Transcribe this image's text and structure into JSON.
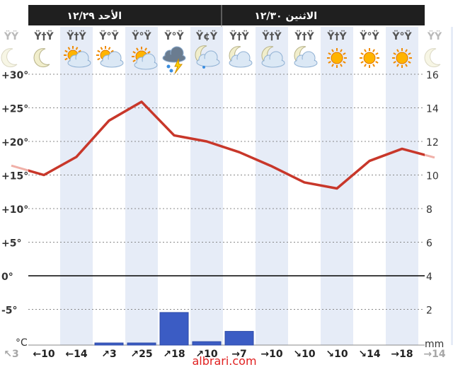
{
  "days": [
    {
      "label": "الأحد ١٢/٢٩"
    },
    {
      "label": "الاثنين ١٢/٣٠"
    }
  ],
  "hours": [
    "ŸŸ",
    "Ÿ†Ÿ",
    "Ÿ†Ÿ",
    "Ÿ°Ÿ",
    "Ÿ°Ÿ",
    "Ÿ°Ÿ",
    "Ÿ¢Ÿ",
    "Ÿ†Ÿ",
    "Ÿ†Ÿ",
    "Ÿ†Ÿ",
    "Ÿ†Ÿ",
    "Ÿ°Ÿ",
    "Ÿ°Ÿ",
    "ŸŸ"
  ],
  "icons": [
    "moon-icon",
    "moon-icon",
    "partly-cloudy-day-icon",
    "partly-cloudy-day-icon",
    "sun-cloud-icon",
    "thunderstorm-icon",
    "moon-cloud-rain-icon",
    "moon-cloud-icon",
    "moon-cloud-icon",
    "moon-cloud-icon",
    "sun-icon",
    "sun-icon",
    "sun-icon",
    "moon-icon"
  ],
  "wind": [
    {
      "arrow": "↖",
      "speed": "3"
    },
    {
      "arrow": "←",
      "speed": "10"
    },
    {
      "arrow": "←",
      "speed": "14"
    },
    {
      "arrow": "↗",
      "speed": "3"
    },
    {
      "arrow": "↗",
      "speed": "25"
    },
    {
      "arrow": "↗",
      "speed": "18"
    },
    {
      "arrow": "↗",
      "speed": "10"
    },
    {
      "arrow": "→",
      "speed": "7"
    },
    {
      "arrow": "→",
      "speed": "10"
    },
    {
      "arrow": "↘",
      "speed": "10"
    },
    {
      "arrow": "↘",
      "speed": "10"
    },
    {
      "arrow": "↘",
      "speed": "14"
    },
    {
      "arrow": "→",
      "speed": "18"
    },
    {
      "arrow": "→",
      "speed": "14"
    }
  ],
  "units": {
    "temp": "°C",
    "precip": "mm"
  },
  "watermark": "albrari.com",
  "colors": {
    "header": "#1f1f1f",
    "line": "#c8372a",
    "bar": "#3b5cc4",
    "stripe": "#e6ecf7"
  },
  "chart_data": {
    "type": "line",
    "x": [
      0,
      1,
      2,
      3,
      4,
      5,
      6,
      7,
      8,
      9,
      10,
      11,
      12,
      13
    ],
    "series": [
      {
        "values": [
          16.4,
          15.0,
          17.7,
          23.1,
          25.9,
          20.9,
          20.0,
          18.4,
          16.3,
          13.9,
          13.0,
          17.1,
          18.9,
          17.6
        ]
      }
    ],
    "precip": [
      0,
      0,
      0,
      0.1,
      0.1,
      1.9,
      0.2,
      0.8,
      0,
      0,
      0,
      0,
      0,
      0
    ],
    "y_left": {
      "ticks": [
        "+30°",
        "+25°",
        "+20°",
        "+15°",
        "+10°",
        "+5°",
        "0°",
        "-5°"
      ],
      "range": [
        -10,
        30
      ]
    },
    "y_right": {
      "ticks": [
        "16",
        "14",
        "12",
        "10",
        "8",
        "6",
        "4",
        "2"
      ],
      "range": [
        0,
        16
      ]
    },
    "grid": true
  }
}
